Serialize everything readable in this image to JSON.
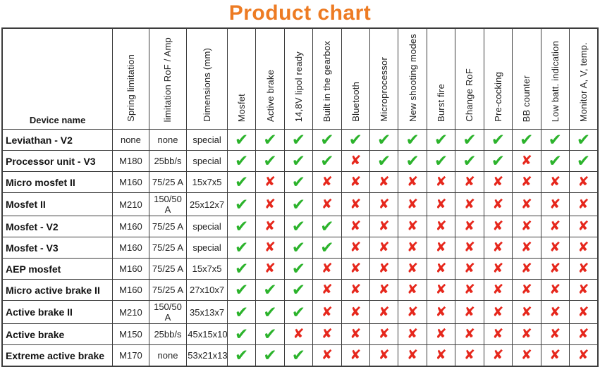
{
  "title": "Product chart",
  "colors": {
    "title_orange": "#ED7B23",
    "check_green": "#2CB32C",
    "cross_red": "#E6271C",
    "grid": "#3c3c3c"
  },
  "icons": {
    "check_glyph": "✔",
    "cross_glyph": "✘"
  },
  "table": {
    "device_header": "Device name",
    "spec_columns": [
      "Spring limitation",
      "limitation RoF / Amp",
      "Dimensions (mm)"
    ],
    "feature_columns": [
      "Mosfet",
      "Active brake",
      "14,8V lipol ready",
      "Built in the gearbox",
      "Bluetooth",
      "Microprocessor",
      "New shooting modes",
      "Burst fire",
      "Change RoF",
      "Pre-cocking",
      "BB counter",
      "Low batt. indication",
      "Monitor A, V, temp."
    ],
    "rows": [
      {
        "name": "Leviathan - V2",
        "specs": [
          "none",
          "none",
          "special"
        ],
        "features": [
          true,
          true,
          true,
          true,
          true,
          true,
          true,
          true,
          true,
          true,
          true,
          true,
          true
        ]
      },
      {
        "name": "Processor unit - V3",
        "specs": [
          "M180",
          "25bb/s",
          "special"
        ],
        "features": [
          true,
          true,
          true,
          true,
          false,
          true,
          true,
          true,
          true,
          true,
          false,
          true,
          true
        ]
      },
      {
        "name": "Micro mosfet II",
        "specs": [
          "M160",
          "75/25 A",
          "15x7x5"
        ],
        "features": [
          true,
          false,
          true,
          false,
          false,
          false,
          false,
          false,
          false,
          false,
          false,
          false,
          false
        ]
      },
      {
        "name": "Mosfet II",
        "specs": [
          "M210",
          "150/50 A",
          "25x12x7"
        ],
        "features": [
          true,
          false,
          true,
          false,
          false,
          false,
          false,
          false,
          false,
          false,
          false,
          false,
          false
        ]
      },
      {
        "name": "Mosfet - V2",
        "specs": [
          "M160",
          "75/25 A",
          "special"
        ],
        "features": [
          true,
          false,
          true,
          true,
          false,
          false,
          false,
          false,
          false,
          false,
          false,
          false,
          false
        ]
      },
      {
        "name": "Mosfet - V3",
        "specs": [
          "M160",
          "75/25 A",
          "special"
        ],
        "features": [
          true,
          false,
          true,
          true,
          false,
          false,
          false,
          false,
          false,
          false,
          false,
          false,
          false
        ]
      },
      {
        "name": "AEP mosfet",
        "specs": [
          "M160",
          "75/25 A",
          "15x7x5"
        ],
        "features": [
          true,
          false,
          true,
          false,
          false,
          false,
          false,
          false,
          false,
          false,
          false,
          false,
          false
        ]
      },
      {
        "name": "Micro active brake II",
        "specs": [
          "M160",
          "75/25 A",
          "27x10x7"
        ],
        "features": [
          true,
          true,
          true,
          false,
          false,
          false,
          false,
          false,
          false,
          false,
          false,
          false,
          false
        ]
      },
      {
        "name": "Active brake II",
        "specs": [
          "M210",
          "150/50 A",
          "35x13x7"
        ],
        "features": [
          true,
          true,
          true,
          false,
          false,
          false,
          false,
          false,
          false,
          false,
          false,
          false,
          false
        ]
      },
      {
        "name": "Active brake",
        "specs": [
          "M150",
          "25bb/s",
          "45x15x10"
        ],
        "features": [
          true,
          true,
          false,
          false,
          false,
          false,
          false,
          false,
          false,
          false,
          false,
          false,
          false
        ]
      },
      {
        "name": "Extreme active brake",
        "specs": [
          "M170",
          "none",
          "53x21x13"
        ],
        "features": [
          true,
          true,
          true,
          false,
          false,
          false,
          false,
          false,
          false,
          false,
          false,
          false,
          false
        ]
      }
    ]
  }
}
